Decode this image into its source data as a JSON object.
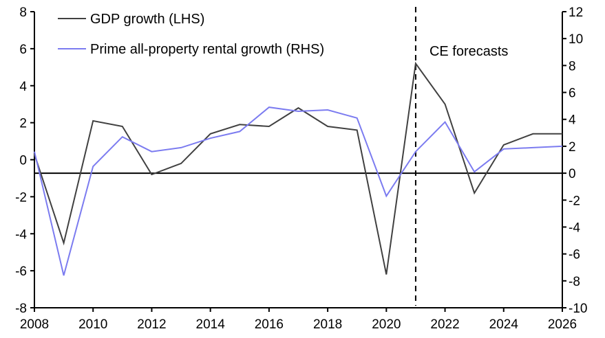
{
  "chart_data": {
    "type": "line",
    "title": "",
    "xlabel": "",
    "ylabel_left": "",
    "ylabel_right": "",
    "x": [
      2008,
      2009,
      2010,
      2011,
      2012,
      2013,
      2014,
      2015,
      2016,
      2017,
      2018,
      2019,
      2020,
      2021,
      2022,
      2023,
      2024,
      2025,
      2026
    ],
    "xlim": [
      2008,
      2026
    ],
    "x_ticks": [
      "2008",
      "2010",
      "2012",
      "2014",
      "2016",
      "2018",
      "2020",
      "2022",
      "2024",
      "2026"
    ],
    "ylim_left": [
      -8,
      8
    ],
    "y_ticks_left": [
      "8",
      "6",
      "4",
      "2",
      "0",
      "-2",
      "-4",
      "-6",
      "-8"
    ],
    "ylim_right": [
      -10,
      12
    ],
    "y_ticks_right": [
      "12",
      "10",
      "8",
      "6",
      "4",
      "2",
      "0",
      "-2",
      "-4",
      "-6",
      "-8",
      "-10"
    ],
    "grid": false,
    "zero_line": "right-axis 0",
    "legend_position": "top-left",
    "series": [
      {
        "name": "GDP growth (LHS)",
        "axis": "left",
        "color": "#404040",
        "values": [
          0.3,
          -4.5,
          2.1,
          1.8,
          -0.8,
          -0.2,
          1.4,
          1.9,
          1.8,
          2.8,
          1.8,
          1.6,
          -6.2,
          5.2,
          3.0,
          -1.8,
          0.8,
          1.4,
          1.4
        ]
      },
      {
        "name": "Prime all-property rental growth (RHS)",
        "axis": "right",
        "color": "#7b7bf0",
        "values": [
          1.6,
          -7.6,
          0.5,
          2.7,
          1.6,
          1.9,
          2.6,
          3.1,
          4.9,
          4.6,
          4.7,
          4.1,
          -1.7,
          1.6,
          3.8,
          0.1,
          1.8,
          1.9,
          2.0
        ]
      }
    ],
    "annotations": [
      {
        "text": "CE forecasts",
        "x": 2021,
        "type": "vertical-dashed-line"
      }
    ]
  }
}
